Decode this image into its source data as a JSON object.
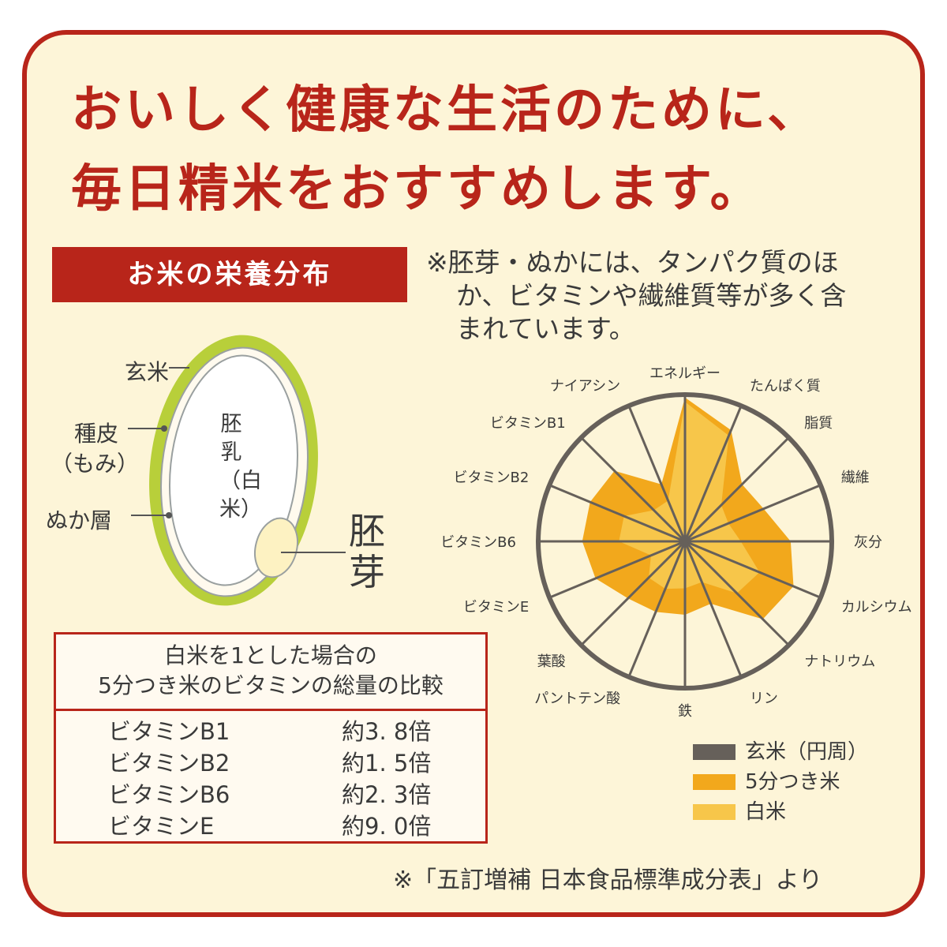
{
  "headline": {
    "line1": "おいしく健康な生活のために、",
    "line2": "毎日精米をおすすめします。"
  },
  "section_label": "お米の栄養分布",
  "note": {
    "line1": "※胚芽・ぬかには、タンパク質のほ",
    "line2": "か、ビタミンや繊維質等が多く含",
    "line3": "まれています。"
  },
  "grain": {
    "label_genmai": "玄米",
    "label_shuhi_1": "種皮",
    "label_shuhi_2": "（もみ）",
    "label_nuka": "ぬか層",
    "label_endosperm": "胚乳（白米）",
    "label_germ_1": "胚",
    "label_germ_2": "芽"
  },
  "comparison_table": {
    "caption_1": "白米を1とした場合の",
    "caption_2": "5分つき米のビタミンの総量の比較",
    "rows": [
      {
        "name": "ビタミンB1",
        "value": "約3. 8倍"
      },
      {
        "name": "ビタミンB2",
        "value": "約1. 5倍"
      },
      {
        "name": "ビタミンB6",
        "value": "約2. 3倍"
      },
      {
        "name": "ビタミンE",
        "value": "約9. 0倍"
      }
    ]
  },
  "chart_data": {
    "type": "radar",
    "title": "",
    "axes": [
      "エネルギー",
      "たんぱく質",
      "脂質",
      "繊維",
      "灰分",
      "カルシウム",
      "ナトリウム",
      "リン",
      "鉄",
      "パントテン酸",
      "葉酸",
      "ビタミンE",
      "ビタミンB6",
      "ビタミンB2",
      "ビタミンB1",
      "ナイアシン"
    ],
    "scale": {
      "min": 0,
      "max": 1
    },
    "series": [
      {
        "name": "玄米（円周）",
        "color": "#66605a",
        "values": [
          1,
          1,
          1,
          1,
          1,
          1,
          1,
          1,
          1,
          1,
          1,
          1,
          1,
          1,
          1,
          1
        ]
      },
      {
        "name": "5分つき米",
        "color": "#f2a81c",
        "values": [
          0.98,
          0.82,
          0.55,
          0.58,
          0.72,
          0.8,
          0.75,
          0.46,
          0.5,
          0.52,
          0.55,
          0.66,
          0.7,
          0.7,
          0.68,
          0.42
        ]
      },
      {
        "name": "白米",
        "color": "#f7c64a",
        "values": [
          0.95,
          0.78,
          0.35,
          0.32,
          0.38,
          0.55,
          0.5,
          0.3,
          0.32,
          0.35,
          0.35,
          0.25,
          0.45,
          0.45,
          0.3,
          0.3
        ]
      }
    ],
    "legend": "bottom-right"
  },
  "source": "※「五訂増補 日本食品標準成分表」より"
}
